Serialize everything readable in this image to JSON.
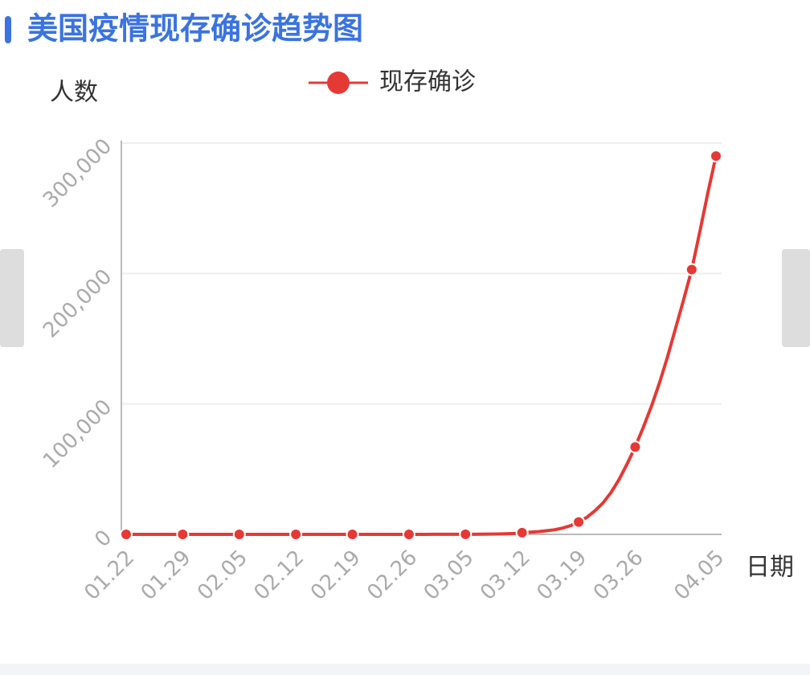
{
  "chart_data": {
    "type": "line",
    "title": "美国疫情现存确诊趋势图",
    "y_label": "人数",
    "x_label": "日期",
    "categories": [
      "01.22",
      null,
      null,
      null,
      null,
      null,
      null,
      "01.29",
      null,
      null,
      null,
      null,
      null,
      null,
      "02.05",
      null,
      null,
      null,
      null,
      null,
      null,
      "02.12",
      null,
      null,
      null,
      null,
      null,
      null,
      "02.19",
      null,
      null,
      null,
      null,
      null,
      null,
      "02.26",
      null,
      null,
      null,
      null,
      null,
      null,
      "03.05",
      null,
      null,
      null,
      null,
      null,
      null,
      "03.12",
      null,
      null,
      null,
      null,
      null,
      null,
      "03.19",
      null,
      null,
      null,
      null,
      null,
      null,
      "03.26",
      null,
      null,
      null,
      null,
      null,
      null,
      null,
      null,
      null,
      "04.05"
    ],
    "series": [
      {
        "name": "现存确诊",
        "color": "#e53935",
        "values": [
          1,
          1,
          2,
          2,
          4,
          4,
          5,
          5,
          5,
          5,
          6,
          6,
          7,
          8,
          8,
          8,
          8,
          12,
          12,
          12,
          12,
          12,
          12,
          12,
          13,
          13,
          13,
          13,
          13,
          13,
          13,
          13,
          13,
          13,
          13,
          13,
          13,
          13,
          45,
          45,
          50,
          58,
          70,
          90,
          120,
          200,
          300,
          450,
          700,
          1300,
          1700,
          2100,
          2800,
          3500,
          4800,
          6700,
          9500,
          13000,
          18000,
          24000,
          32000,
          42000,
          54000,
          67000,
          82000,
          98000,
          116000,
          136000,
          158000,
          180000,
          203000,
          232000,
          262000,
          290000
        ]
      }
    ],
    "ylim": [
      0,
      300000
    ],
    "yticks": [
      0,
      {
        "value": 100000,
        "label": "100,000"
      },
      {
        "value": 200000,
        "label": "200,000"
      },
      {
        "value": 300000,
        "label": "300,000"
      }
    ],
    "grid": true
  }
}
